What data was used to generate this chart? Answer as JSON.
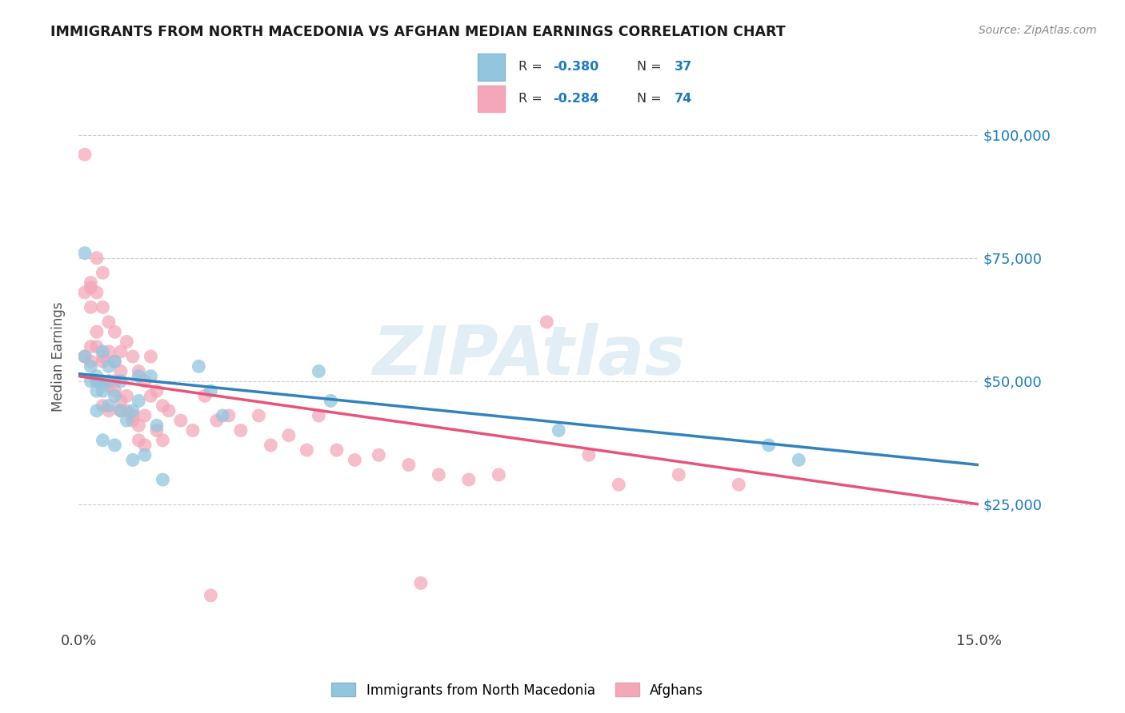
{
  "title": "IMMIGRANTS FROM NORTH MACEDONIA VS AFGHAN MEDIAN EARNINGS CORRELATION CHART",
  "source": "Source: ZipAtlas.com",
  "ylabel": "Median Earnings",
  "xlim": [
    0.0,
    0.15
  ],
  "ylim": [
    0,
    110000
  ],
  "yticks": [
    0,
    25000,
    50000,
    75000,
    100000
  ],
  "ytick_labels": [
    "",
    "$25,000",
    "$50,000",
    "$75,000",
    "$100,000"
  ],
  "color_macedonian": "#92c5de",
  "color_afghan": "#f4a7b9",
  "color_macedonian_line": "#3182bd",
  "color_afghan_line": "#e8537a",
  "color_right_axis": "#1a7abf",
  "watermark": "ZIPAtlas",
  "mac_line_x0": 0.0,
  "mac_line_y0": 51500,
  "mac_line_x1": 0.15,
  "mac_line_y1": 33000,
  "afg_line_x0": 0.0,
  "afg_line_y0": 51000,
  "afg_line_x1": 0.15,
  "afg_line_y1": 25000,
  "macedonian_x": [
    0.001,
    0.001,
    0.002,
    0.002,
    0.003,
    0.003,
    0.003,
    0.004,
    0.004,
    0.004,
    0.005,
    0.005,
    0.005,
    0.006,
    0.006,
    0.007,
    0.007,
    0.008,
    0.009,
    0.01,
    0.01,
    0.011,
    0.012,
    0.013,
    0.014,
    0.02,
    0.022,
    0.024,
    0.04,
    0.042,
    0.08,
    0.115,
    0.12,
    0.003,
    0.004,
    0.006,
    0.009
  ],
  "macedonian_y": [
    76000,
    55000,
    53000,
    50000,
    51000,
    50000,
    48000,
    56000,
    50000,
    48000,
    53000,
    50000,
    45000,
    54000,
    47000,
    50000,
    44000,
    42000,
    44000,
    51000,
    46000,
    35000,
    51000,
    41000,
    30000,
    53000,
    48000,
    43000,
    52000,
    46000,
    40000,
    37000,
    34000,
    44000,
    38000,
    37000,
    34000
  ],
  "afghan_x": [
    0.001,
    0.001,
    0.001,
    0.002,
    0.002,
    0.002,
    0.002,
    0.003,
    0.003,
    0.003,
    0.003,
    0.004,
    0.004,
    0.004,
    0.004,
    0.005,
    0.005,
    0.005,
    0.005,
    0.006,
    0.006,
    0.006,
    0.007,
    0.007,
    0.007,
    0.008,
    0.008,
    0.009,
    0.009,
    0.01,
    0.01,
    0.011,
    0.011,
    0.012,
    0.012,
    0.013,
    0.013,
    0.014,
    0.014,
    0.015,
    0.017,
    0.019,
    0.021,
    0.023,
    0.025,
    0.027,
    0.03,
    0.032,
    0.035,
    0.038,
    0.04,
    0.043,
    0.046,
    0.05,
    0.055,
    0.06,
    0.065,
    0.07,
    0.078,
    0.085,
    0.09,
    0.1,
    0.11,
    0.002,
    0.003,
    0.004,
    0.005,
    0.006,
    0.007,
    0.008,
    0.009,
    0.01,
    0.011,
    0.057,
    0.022
  ],
  "afghan_y": [
    96000,
    68000,
    55000,
    70000,
    65000,
    57000,
    54000,
    75000,
    68000,
    57000,
    50000,
    72000,
    65000,
    55000,
    45000,
    62000,
    56000,
    50000,
    44000,
    60000,
    54000,
    48000,
    56000,
    52000,
    46000,
    58000,
    47000,
    55000,
    43000,
    52000,
    41000,
    50000,
    43000,
    55000,
    47000,
    48000,
    40000,
    45000,
    38000,
    44000,
    42000,
    40000,
    47000,
    42000,
    43000,
    40000,
    43000,
    37000,
    39000,
    36000,
    43000,
    36000,
    34000,
    35000,
    33000,
    31000,
    30000,
    31000,
    62000,
    35000,
    29000,
    31000,
    29000,
    69000,
    60000,
    54000,
    49000,
    50000,
    44000,
    44000,
    42000,
    38000,
    37000,
    9000,
    6500
  ]
}
